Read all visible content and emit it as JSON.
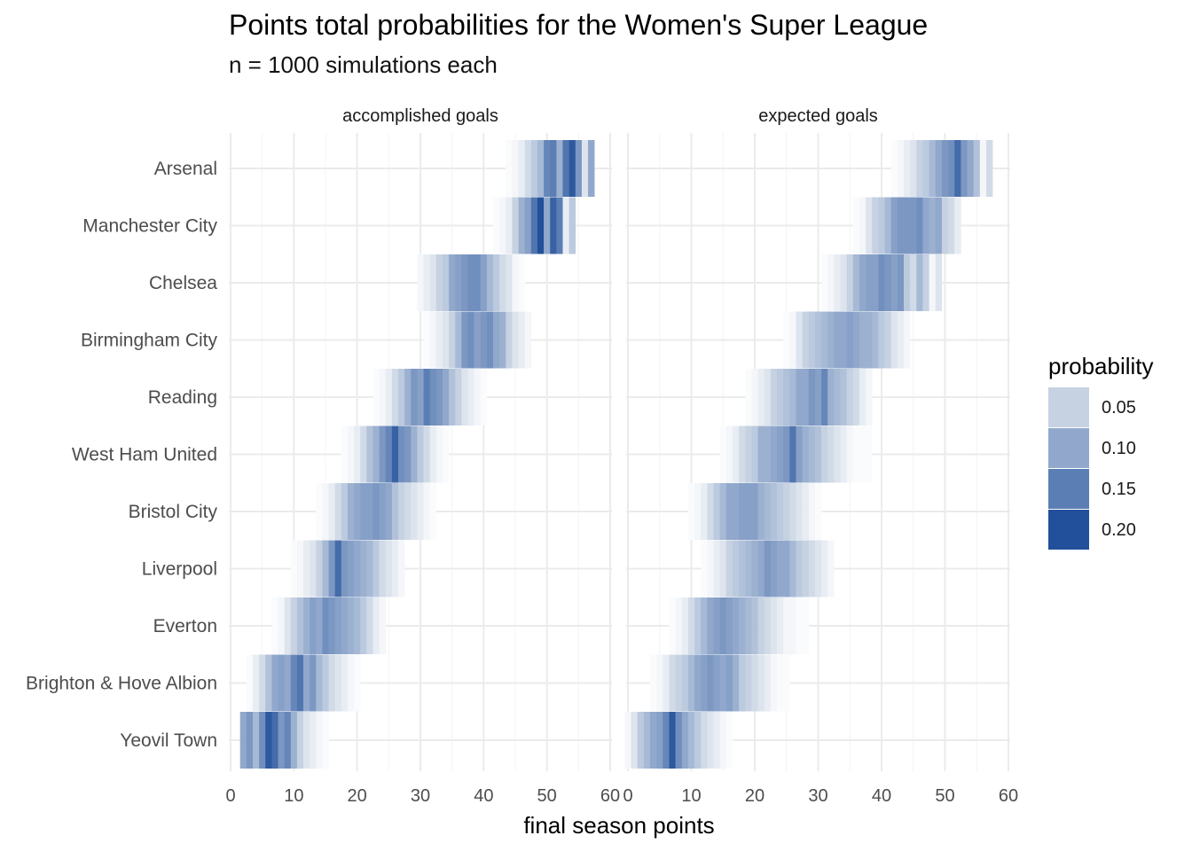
{
  "chart_data": {
    "type": "heatmap",
    "title": "Points total probabilities for the Women's Super League",
    "subtitle": "n = 1000 simulations each",
    "xlabel": "final season points",
    "ylabel": "",
    "xlim": [
      0,
      60
    ],
    "x_ticks": [
      "0",
      "10",
      "20",
      "30",
      "40",
      "50",
      "60"
    ],
    "grid": true,
    "legend_position": "right",
    "legend": {
      "title": "probability",
      "entries": [
        {
          "label": "0.05",
          "color": "#c6d2e2"
        },
        {
          "label": "0.10",
          "color": "#91a8cc"
        },
        {
          "label": "0.15",
          "color": "#5b7eb4"
        },
        {
          "label": "0.20",
          "color": "#22509a"
        }
      ]
    },
    "teams": [
      "Arsenal",
      "Manchester City",
      "Chelsea",
      "Birmingham City",
      "Reading",
      "West Ham United",
      "Bristol City",
      "Liverpool",
      "Everton",
      "Brighton & Hove Albion",
      "Yeovil Town"
    ],
    "facets": [
      {
        "name": "accomplished goals",
        "rows": [
          {
            "team": "Arsenal",
            "points": [
              44,
              45,
              46,
              47,
              48,
              49,
              50,
              51,
              52,
              53,
              54,
              55,
              56,
              57
            ],
            "probabilities": [
              0.005,
              0.01,
              0.02,
              0.04,
              0.06,
              0.08,
              0.14,
              0.15,
              0.09,
              0.16,
              0.19,
              0.12,
              0.03,
              0.1
            ]
          },
          {
            "team": "Manchester City",
            "points": [
              42,
              43,
              44,
              45,
              46,
              47,
              48,
              49,
              50,
              51,
              52,
              53,
              54
            ],
            "probabilities": [
              0.005,
              0.01,
              0.02,
              0.05,
              0.09,
              0.11,
              0.16,
              0.22,
              0.1,
              0.18,
              0.15,
              0.02,
              0.06
            ]
          },
          {
            "team": "Chelsea",
            "points": [
              30,
              31,
              32,
              33,
              34,
              35,
              36,
              37,
              38,
              39,
              40,
              41,
              42,
              43,
              44,
              45,
              46
            ],
            "probabilities": [
              0.01,
              0.02,
              0.03,
              0.05,
              0.06,
              0.1,
              0.11,
              0.12,
              0.13,
              0.13,
              0.11,
              0.08,
              0.06,
              0.04,
              0.03,
              0.01,
              0.005
            ]
          },
          {
            "team": "Birmingham City",
            "points": [
              31,
              32,
              33,
              34,
              35,
              36,
              37,
              38,
              39,
              40,
              41,
              42,
              43,
              44,
              45,
              46,
              47
            ],
            "probabilities": [
              0.005,
              0.01,
              0.02,
              0.03,
              0.05,
              0.08,
              0.12,
              0.13,
              0.11,
              0.12,
              0.13,
              0.1,
              0.09,
              0.05,
              0.03,
              0.02,
              0.01
            ]
          },
          {
            "team": "Reading",
            "points": [
              23,
              24,
              25,
              26,
              27,
              28,
              29,
              30,
              31,
              32,
              33,
              34,
              35,
              36,
              37,
              38,
              39,
              40
            ],
            "probabilities": [
              0.005,
              0.01,
              0.02,
              0.04,
              0.06,
              0.09,
              0.12,
              0.11,
              0.15,
              0.13,
              0.12,
              0.1,
              0.07,
              0.05,
              0.03,
              0.02,
              0.01,
              0.005
            ]
          },
          {
            "team": "West Ham United",
            "points": [
              18,
              19,
              20,
              21,
              22,
              23,
              24,
              25,
              26,
              27,
              28,
              29,
              30,
              31,
              32,
              33,
              34
            ],
            "probabilities": [
              0.005,
              0.01,
              0.02,
              0.04,
              0.07,
              0.09,
              0.12,
              0.14,
              0.18,
              0.13,
              0.12,
              0.09,
              0.06,
              0.04,
              0.02,
              0.01,
              0.005
            ]
          },
          {
            "team": "Bristol City",
            "points": [
              14,
              15,
              16,
              17,
              18,
              19,
              20,
              21,
              22,
              23,
              24,
              25,
              26,
              27,
              28,
              29,
              30,
              31,
              32
            ],
            "probabilities": [
              0.005,
              0.01,
              0.02,
              0.04,
              0.06,
              0.09,
              0.1,
              0.11,
              0.11,
              0.12,
              0.11,
              0.1,
              0.07,
              0.05,
              0.04,
              0.03,
              0.02,
              0.01,
              0.005
            ]
          },
          {
            "team": "Liverpool",
            "points": [
              10,
              11,
              12,
              13,
              14,
              15,
              16,
              17,
              18,
              19,
              20,
              21,
              22,
              23,
              24,
              25,
              26,
              27
            ],
            "probabilities": [
              0.005,
              0.01,
              0.02,
              0.03,
              0.05,
              0.08,
              0.12,
              0.17,
              0.12,
              0.11,
              0.1,
              0.09,
              0.08,
              0.06,
              0.04,
              0.03,
              0.02,
              0.01
            ]
          },
          {
            "team": "Everton",
            "points": [
              7,
              8,
              9,
              10,
              11,
              12,
              13,
              14,
              15,
              16,
              17,
              18,
              19,
              20,
              21,
              22,
              23,
              24
            ],
            "probabilities": [
              0.005,
              0.01,
              0.03,
              0.05,
              0.07,
              0.09,
              0.11,
              0.1,
              0.13,
              0.12,
              0.11,
              0.1,
              0.09,
              0.08,
              0.06,
              0.04,
              0.02,
              0.01
            ]
          },
          {
            "team": "Brighton & Hove Albion",
            "points": [
              3,
              4,
              5,
              6,
              7,
              8,
              9,
              10,
              11,
              12,
              13,
              14,
              15,
              16,
              17,
              18,
              19,
              20
            ],
            "probabilities": [
              0.005,
              0.02,
              0.04,
              0.07,
              0.1,
              0.11,
              0.1,
              0.14,
              0.16,
              0.1,
              0.12,
              0.08,
              0.06,
              0.04,
              0.03,
              0.02,
              0.01,
              0.005
            ]
          },
          {
            "team": "Yeovil Town",
            "points": [
              2,
              3,
              4,
              5,
              6,
              7,
              8,
              9,
              10,
              11,
              12,
              13,
              14,
              15
            ],
            "probabilities": [
              0.1,
              0.12,
              0.08,
              0.13,
              0.19,
              0.17,
              0.12,
              0.14,
              0.09,
              0.05,
              0.03,
              0.02,
              0.01,
              0.005
            ]
          }
        ]
      },
      {
        "name": "expected goals",
        "rows": [
          {
            "team": "Arsenal",
            "points": [
              42,
              43,
              44,
              45,
              46,
              47,
              48,
              49,
              50,
              51,
              52,
              53,
              54,
              55,
              56,
              57
            ],
            "probabilities": [
              0.005,
              0.01,
              0.02,
              0.03,
              0.05,
              0.06,
              0.08,
              0.1,
              0.12,
              0.13,
              0.17,
              0.12,
              0.1,
              0.07,
              0.01,
              0.04
            ]
          },
          {
            "team": "Manchester City",
            "points": [
              36,
              37,
              38,
              39,
              40,
              41,
              42,
              43,
              44,
              45,
              46,
              47,
              48,
              49,
              50,
              51,
              52
            ],
            "probabilities": [
              0.005,
              0.01,
              0.03,
              0.05,
              0.06,
              0.08,
              0.11,
              0.12,
              0.12,
              0.12,
              0.13,
              0.1,
              0.09,
              0.1,
              0.05,
              0.04,
              0.02
            ]
          },
          {
            "team": "Chelsea",
            "points": [
              31,
              32,
              33,
              34,
              35,
              36,
              37,
              38,
              39,
              40,
              41,
              42,
              43,
              44,
              45,
              46,
              47,
              48,
              49
            ],
            "probabilities": [
              0.005,
              0.01,
              0.02,
              0.03,
              0.05,
              0.08,
              0.1,
              0.11,
              0.11,
              0.13,
              0.12,
              0.11,
              0.12,
              0.06,
              0.04,
              0.08,
              0.05,
              0.01,
              0.03
            ]
          },
          {
            "team": "Birmingham City",
            "points": [
              25,
              26,
              27,
              28,
              29,
              30,
              31,
              32,
              33,
              34,
              35,
              36,
              37,
              38,
              39,
              40,
              41,
              42,
              43,
              44
            ],
            "probabilities": [
              0.005,
              0.01,
              0.03,
              0.05,
              0.06,
              0.07,
              0.08,
              0.09,
              0.1,
              0.1,
              0.11,
              0.1,
              0.09,
              0.09,
              0.08,
              0.06,
              0.05,
              0.03,
              0.02,
              0.01
            ]
          },
          {
            "team": "Reading",
            "points": [
              19,
              20,
              21,
              22,
              23,
              24,
              25,
              26,
              27,
              28,
              29,
              30,
              31,
              32,
              33,
              34,
              35,
              36,
              37,
              38
            ],
            "probabilities": [
              0.005,
              0.01,
              0.02,
              0.03,
              0.05,
              0.06,
              0.07,
              0.08,
              0.1,
              0.1,
              0.12,
              0.11,
              0.14,
              0.09,
              0.08,
              0.07,
              0.05,
              0.04,
              0.02,
              0.01
            ]
          },
          {
            "team": "West Ham United",
            "points": [
              15,
              16,
              17,
              18,
              19,
              20,
              21,
              22,
              23,
              24,
              25,
              26,
              27,
              28,
              29,
              30,
              31,
              32,
              33,
              34,
              35,
              36,
              37,
              38
            ],
            "probabilities": [
              0.005,
              0.01,
              0.02,
              0.04,
              0.05,
              0.06,
              0.09,
              0.09,
              0.1,
              0.11,
              0.12,
              0.16,
              0.11,
              0.09,
              0.08,
              0.07,
              0.05,
              0.04,
              0.03,
              0.02,
              0.01,
              0.005,
              0.005,
              0.005
            ]
          },
          {
            "team": "Bristol City",
            "points": [
              10,
              11,
              12,
              13,
              14,
              15,
              16,
              17,
              18,
              19,
              20,
              21,
              22,
              23,
              24,
              25,
              26,
              27,
              28,
              29,
              30
            ],
            "probabilities": [
              0.005,
              0.01,
              0.02,
              0.04,
              0.06,
              0.08,
              0.1,
              0.1,
              0.11,
              0.11,
              0.11,
              0.09,
              0.08,
              0.07,
              0.06,
              0.05,
              0.04,
              0.03,
              0.02,
              0.01,
              0.005
            ]
          },
          {
            "team": "Liverpool",
            "points": [
              12,
              13,
              14,
              15,
              16,
              17,
              18,
              19,
              20,
              21,
              22,
              23,
              24,
              25,
              26,
              27,
              28,
              29,
              30,
              31,
              32
            ],
            "probabilities": [
              0.005,
              0.01,
              0.02,
              0.03,
              0.05,
              0.06,
              0.07,
              0.08,
              0.09,
              0.1,
              0.12,
              0.11,
              0.1,
              0.1,
              0.08,
              0.06,
              0.05,
              0.04,
              0.03,
              0.02,
              0.01
            ]
          },
          {
            "team": "Everton",
            "points": [
              7,
              8,
              9,
              10,
              11,
              12,
              13,
              14,
              15,
              16,
              17,
              18,
              19,
              20,
              21,
              22,
              23,
              24,
              25,
              26,
              27,
              28
            ],
            "probabilities": [
              0.005,
              0.01,
              0.02,
              0.04,
              0.06,
              0.08,
              0.1,
              0.11,
              0.12,
              0.11,
              0.1,
              0.09,
              0.08,
              0.07,
              0.05,
              0.04,
              0.03,
              0.02,
              0.01,
              0.01,
              0.005,
              0.005
            ]
          },
          {
            "team": "Brighton & Hove Albion",
            "points": [
              4,
              5,
              6,
              7,
              8,
              9,
              10,
              11,
              12,
              13,
              14,
              15,
              16,
              17,
              18,
              19,
              20,
              21,
              22,
              23,
              24,
              25
            ],
            "probabilities": [
              0.005,
              0.01,
              0.02,
              0.04,
              0.05,
              0.06,
              0.08,
              0.1,
              0.11,
              0.12,
              0.11,
              0.1,
              0.11,
              0.09,
              0.06,
              0.05,
              0.04,
              0.03,
              0.02,
              0.01,
              0.005,
              0.005
            ]
          },
          {
            "team": "Yeovil Town",
            "points": [
              0,
              1,
              2,
              3,
              4,
              5,
              6,
              7,
              8,
              9,
              10,
              11,
              12,
              13,
              14,
              15,
              16
            ],
            "probabilities": [
              0.01,
              0.03,
              0.06,
              0.08,
              0.1,
              0.11,
              0.14,
              0.19,
              0.13,
              0.1,
              0.08,
              0.06,
              0.04,
              0.03,
              0.02,
              0.01,
              0.005
            ]
          }
        ]
      }
    ]
  }
}
